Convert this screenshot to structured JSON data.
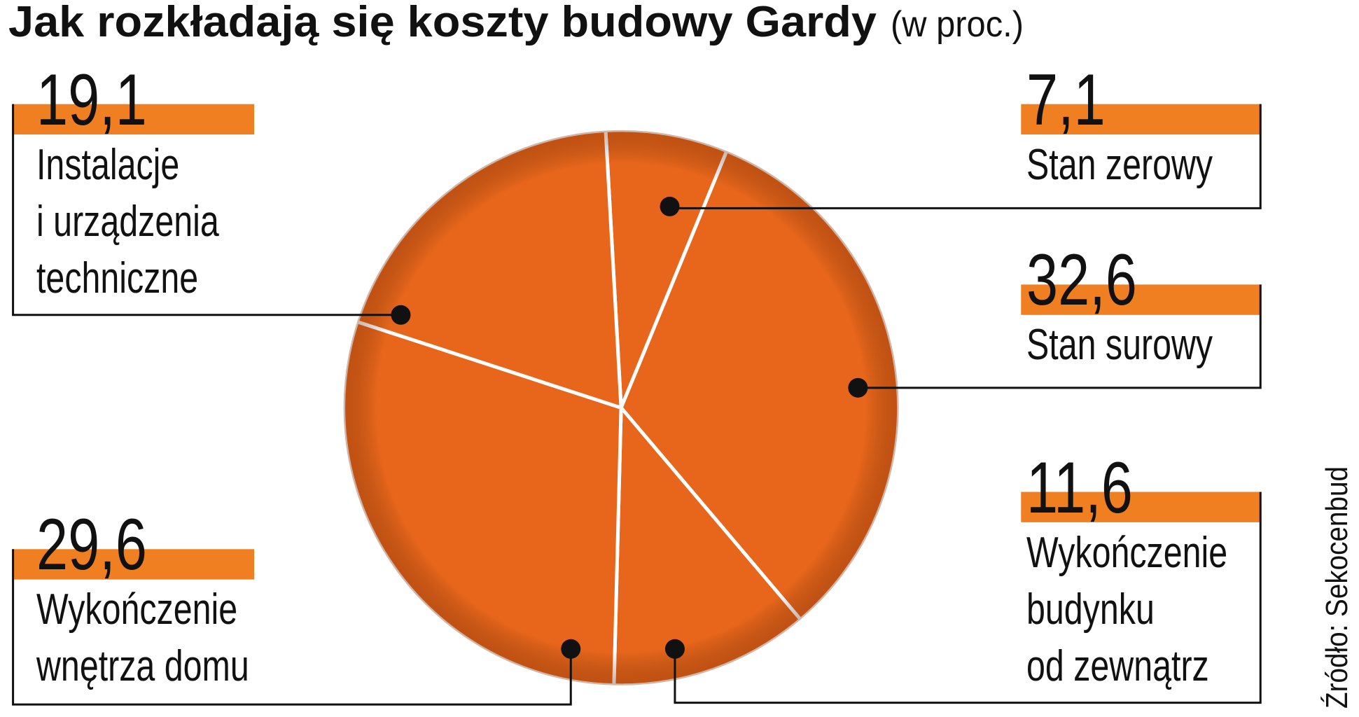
{
  "chart_data": {
    "type": "pie",
    "title": "Jak rozkładają się koszty budowy Gardy",
    "subtitle": "(w proc.)",
    "categories": [
      "Stan zerowy",
      "Stan surowy",
      "Wykończenie\nbudynku\nod zewnątrz",
      "Wykończenie\nwnętrza domu",
      "Instalacje\ni urządzenia\ntechniczne"
    ],
    "values": [
      7.1,
      32.6,
      11.6,
      29.6,
      19.1
    ],
    "value_labels": [
      "7,1",
      "32,6",
      "11,6",
      "29,6",
      "19,1"
    ],
    "color": "#e8661b",
    "source": "Źródło: Sekocenbud"
  }
}
